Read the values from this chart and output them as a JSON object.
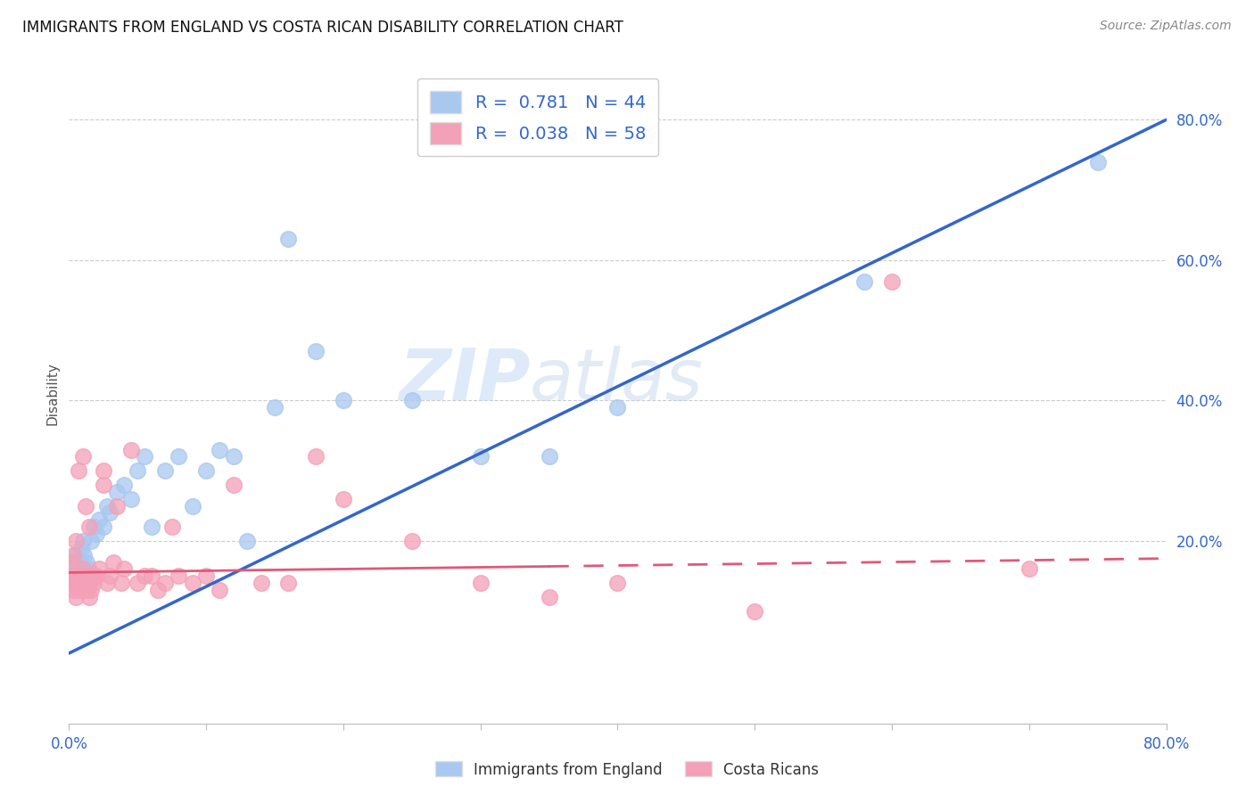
{
  "title": "IMMIGRANTS FROM ENGLAND VS COSTA RICAN DISABILITY CORRELATION CHART",
  "source": "Source: ZipAtlas.com",
  "ylabel": "Disability",
  "yticks": [
    "20.0%",
    "40.0%",
    "60.0%",
    "80.0%"
  ],
  "ytick_vals": [
    0.2,
    0.4,
    0.6,
    0.8
  ],
  "xlim": [
    0.0,
    0.8
  ],
  "ylim": [
    -0.06,
    0.88
  ],
  "blue_R": 0.781,
  "blue_N": 44,
  "pink_R": 0.038,
  "pink_N": 58,
  "blue_color": "#A8C8F0",
  "pink_color": "#F4A0B8",
  "blue_line_color": "#3366CC",
  "pink_line_color": "#E05878",
  "pink_line_solid_end": 0.35,
  "watermark_zip": "ZIP",
  "watermark_atlas": "atlas",
  "legend_label_blue": "Immigrants from England",
  "legend_label_pink": "Costa Ricans",
  "blue_line_x0": 0.0,
  "blue_line_y0": 0.04,
  "blue_line_x1": 0.8,
  "blue_line_y1": 0.8,
  "pink_line_x0": 0.0,
  "pink_line_y0": 0.155,
  "pink_line_x1": 0.8,
  "pink_line_y1": 0.175,
  "blue_scatter_x": [
    0.002,
    0.003,
    0.004,
    0.005,
    0.006,
    0.007,
    0.008,
    0.009,
    0.01,
    0.011,
    0.012,
    0.013,
    0.014,
    0.015,
    0.016,
    0.018,
    0.02,
    0.022,
    0.025,
    0.028,
    0.03,
    0.035,
    0.04,
    0.045,
    0.05,
    0.055,
    0.06,
    0.07,
    0.08,
    0.09,
    0.1,
    0.11,
    0.12,
    0.13,
    0.15,
    0.16,
    0.18,
    0.2,
    0.25,
    0.3,
    0.35,
    0.4,
    0.58,
    0.75
  ],
  "blue_scatter_y": [
    0.16,
    0.17,
    0.15,
    0.18,
    0.14,
    0.16,
    0.17,
    0.19,
    0.2,
    0.18,
    0.15,
    0.17,
    0.16,
    0.15,
    0.2,
    0.22,
    0.21,
    0.23,
    0.22,
    0.25,
    0.24,
    0.27,
    0.28,
    0.26,
    0.3,
    0.32,
    0.22,
    0.3,
    0.32,
    0.25,
    0.3,
    0.33,
    0.32,
    0.2,
    0.39,
    0.63,
    0.47,
    0.4,
    0.4,
    0.32,
    0.32,
    0.39,
    0.57,
    0.74
  ],
  "pink_scatter_x": [
    0.001,
    0.002,
    0.003,
    0.004,
    0.005,
    0.006,
    0.007,
    0.008,
    0.009,
    0.01,
    0.011,
    0.012,
    0.013,
    0.014,
    0.015,
    0.016,
    0.018,
    0.02,
    0.022,
    0.025,
    0.028,
    0.03,
    0.032,
    0.035,
    0.038,
    0.04,
    0.045,
    0.05,
    0.055,
    0.06,
    0.065,
    0.07,
    0.075,
    0.08,
    0.09,
    0.1,
    0.11,
    0.12,
    0.14,
    0.16,
    0.18,
    0.2,
    0.25,
    0.3,
    0.35,
    0.4,
    0.5,
    0.6,
    0.7,
    0.002,
    0.003,
    0.005,
    0.007,
    0.01,
    0.012,
    0.015,
    0.018,
    0.025
  ],
  "pink_scatter_y": [
    0.14,
    0.15,
    0.13,
    0.14,
    0.12,
    0.15,
    0.13,
    0.14,
    0.15,
    0.16,
    0.14,
    0.15,
    0.13,
    0.14,
    0.12,
    0.13,
    0.14,
    0.15,
    0.16,
    0.3,
    0.14,
    0.15,
    0.17,
    0.25,
    0.14,
    0.16,
    0.33,
    0.14,
    0.15,
    0.15,
    0.13,
    0.14,
    0.22,
    0.15,
    0.14,
    0.15,
    0.13,
    0.28,
    0.14,
    0.14,
    0.32,
    0.26,
    0.2,
    0.14,
    0.12,
    0.14,
    0.1,
    0.57,
    0.16,
    0.17,
    0.18,
    0.2,
    0.3,
    0.32,
    0.25,
    0.22,
    0.15,
    0.28
  ]
}
